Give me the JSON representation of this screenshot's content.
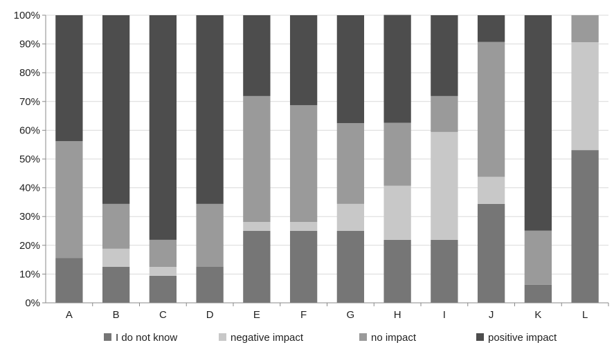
{
  "chart_data": {
    "type": "bar",
    "stacked": true,
    "categories": [
      "A",
      "B",
      "C",
      "D",
      "E",
      "F",
      "G",
      "H",
      "I",
      "J",
      "K",
      "L"
    ],
    "series": [
      {
        "name": "I do not know",
        "color": "#767676",
        "values": [
          15.6,
          12.5,
          9.4,
          12.5,
          25.0,
          25.0,
          25.0,
          21.9,
          21.9,
          34.4,
          6.3,
          53.1
        ]
      },
      {
        "name": "negative impact",
        "color": "#c8c8c8",
        "values": [
          0.0,
          6.3,
          3.1,
          0.0,
          3.1,
          3.1,
          9.4,
          18.8,
          37.5,
          9.4,
          0.0,
          37.5
        ]
      },
      {
        "name": "no impact",
        "color": "#9a9a9a",
        "values": [
          40.6,
          15.6,
          9.4,
          21.9,
          43.8,
          40.6,
          28.1,
          21.9,
          12.5,
          46.9,
          18.8,
          9.4
        ]
      },
      {
        "name": "positive impact",
        "color": "#4d4d4d",
        "values": [
          43.8,
          65.6,
          78.1,
          65.6,
          28.1,
          31.3,
          37.5,
          37.5,
          28.1,
          9.3,
          74.9,
          0.0
        ]
      }
    ],
    "ylim": [
      0,
      100
    ],
    "yticks": [
      "0%",
      "10%",
      "20%",
      "30%",
      "40%",
      "50%",
      "60%",
      "70%",
      "80%",
      "90%",
      "100%"
    ],
    "grid": true,
    "legend_position": "bottom",
    "title": "",
    "xlabel": "",
    "ylabel": ""
  }
}
